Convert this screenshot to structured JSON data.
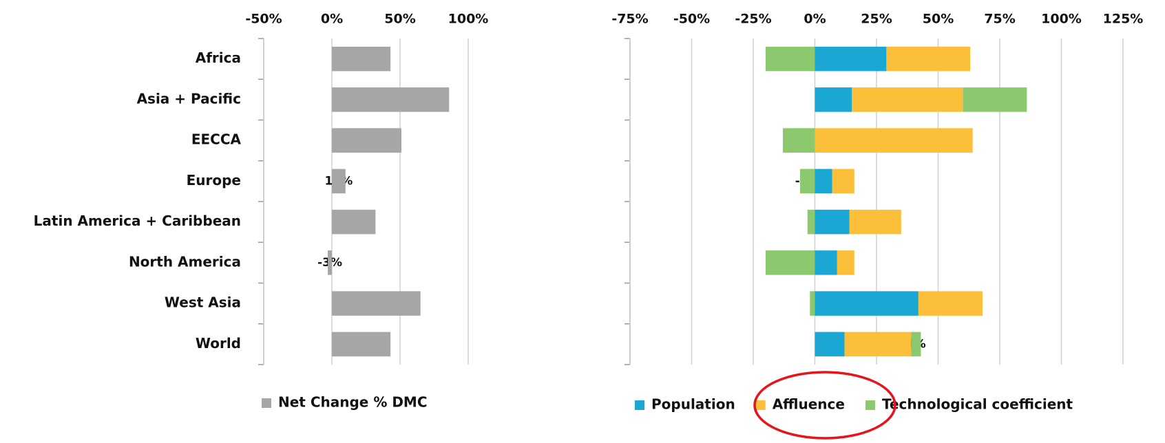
{
  "chart_data": [
    {
      "type": "bar",
      "categories": [
        "Africa",
        "Asia + Pacific",
        "EECCA",
        "Europe",
        "Latin America + Caribbean",
        "North America",
        "West Asia",
        "World"
      ],
      "series": [
        {
          "name": "Net Change % DMC",
          "color": "#a6a6a8",
          "values": [
            43,
            86,
            51,
            10,
            32,
            -3,
            65,
            43
          ],
          "value_labels": [
            "43%",
            "86%",
            "51%",
            "10%",
            "32%",
            "-3%",
            "65%",
            "43%"
          ]
        }
      ],
      "xlim": [
        -50,
        100
      ],
      "xticks": [
        {
          "value": -50,
          "label": "-50%"
        },
        {
          "value": 0,
          "label": "0%"
        },
        {
          "value": 50,
          "label": "50%"
        },
        {
          "value": 100,
          "label": "100%"
        }
      ],
      "grid": true
    },
    {
      "type": "stacked_bar",
      "categories": [
        "Africa",
        "Asia + Pacific",
        "EECCA",
        "Europe",
        "Latin America + Caribbean",
        "North America",
        "West Asia",
        "World"
      ],
      "series": [
        {
          "name": "Population",
          "color": "#1aa7d4",
          "values": [
            29,
            15,
            0,
            7,
            14,
            9,
            42,
            12
          ],
          "value_labels": [
            "29%",
            "15%",
            null,
            null,
            "14%",
            "9%",
            "42%",
            "12%"
          ]
        },
        {
          "name": "Affluence",
          "color": "#fbbf3a",
          "values": [
            34,
            45,
            64,
            9,
            21,
            7,
            26,
            27
          ],
          "value_labels": [
            "34%",
            "45%",
            "64%",
            "9%",
            "21%",
            null,
            "26%",
            "27%"
          ]
        },
        {
          "name": "Technological coefficient",
          "color": "#8cc86d",
          "values": [
            -20,
            26,
            -13,
            -6,
            -3,
            -20,
            -2,
            4
          ],
          "value_labels": [
            "-20%",
            "26%",
            "-13%",
            "-6%",
            null,
            "-20%",
            null,
            "4%"
          ]
        }
      ],
      "xlim": [
        -75,
        125
      ],
      "xticks": [
        {
          "value": -75,
          "label": "-75%"
        },
        {
          "value": -50,
          "label": "-50%"
        },
        {
          "value": -25,
          "label": "-25%"
        },
        {
          "value": 0,
          "label": "0%"
        },
        {
          "value": 25,
          "label": "25%"
        },
        {
          "value": 50,
          "label": "50%"
        },
        {
          "value": 75,
          "label": "75%"
        },
        {
          "value": 100,
          "label": "100%"
        },
        {
          "value": 125,
          "label": "125%"
        }
      ],
      "grid": true
    }
  ]
}
